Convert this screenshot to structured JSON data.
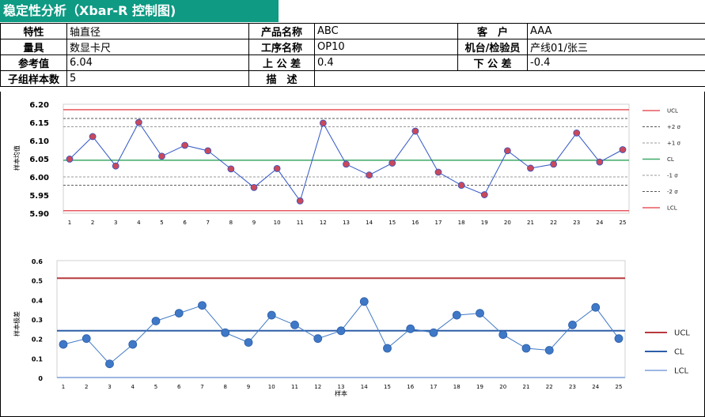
{
  "title": "稳定性分析（Xbar-R 控制图)",
  "info": {
    "row1": {
      "l1": "特性",
      "v1": "轴直径",
      "l2": "产品名称",
      "v2": "ABC",
      "l3": "客　户",
      "v3": "AAA"
    },
    "row2": {
      "l1": "量具",
      "v1": "数显卡尺",
      "l2": "工序名称",
      "v2": "OP10",
      "l3": "机台/检验员",
      "v3": "产线01/张三"
    },
    "row3": {
      "l1": "参考值",
      "v1": "6.04",
      "l2": "上 公 差",
      "v2": "0.4",
      "l3": "下 公 差",
      "v3": "-0.4"
    },
    "row4": {
      "l1": "子组样本数",
      "v1": "5",
      "l2": "描　述",
      "v2": ""
    }
  },
  "chart_data": [
    {
      "type": "line",
      "ylabel": "样本均值",
      "xlabel": "",
      "ylim": [
        5.9,
        6.2
      ],
      "yticks": [
        "5.90",
        "5.95",
        "6.00",
        "6.05",
        "6.10",
        "6.15",
        "6.20"
      ],
      "x": [
        1,
        2,
        3,
        4,
        5,
        6,
        7,
        8,
        9,
        10,
        11,
        12,
        13,
        14,
        15,
        16,
        17,
        18,
        19,
        20,
        21,
        22,
        23,
        24,
        25
      ],
      "values": [
        6.049,
        6.111,
        6.03,
        6.15,
        6.057,
        6.087,
        6.072,
        6.022,
        5.971,
        6.023,
        5.934,
        6.148,
        6.035,
        6.005,
        6.038,
        6.126,
        6.013,
        5.977,
        5.951,
        6.072,
        6.024,
        6.035,
        6.121,
        6.041,
        6.075
      ],
      "limits": [
        {
          "name": "UCL",
          "value": 6.185,
          "color": "#e8595f",
          "style": "solid"
        },
        {
          "name": "+2 σ",
          "value": 6.161,
          "color": "#555555",
          "style": "dash"
        },
        {
          "name": "+1 σ",
          "value": 6.138,
          "color": "#999999",
          "style": "dash"
        },
        {
          "name": "CL",
          "value": 6.046,
          "color": "#3daa66",
          "style": "solid"
        },
        {
          "name": "-1 σ",
          "value": 6.0,
          "color": "#999999",
          "style": "dash"
        },
        {
          "name": "-2 σ",
          "value": 5.977,
          "color": "#555555",
          "style": "dash"
        },
        {
          "name": "LCL",
          "value": 5.907,
          "color": "#e8595f",
          "style": "solid"
        }
      ],
      "line_color": "#2f55c4",
      "marker_color": "#c9485b"
    },
    {
      "type": "line",
      "ylabel": "样本极差",
      "xlabel": "样本",
      "ylim": [
        0,
        0.6
      ],
      "yticks": [
        "0",
        "0.1",
        "0.2",
        "0.3",
        "0.4",
        "0.5",
        "0.6"
      ],
      "x": [
        1,
        2,
        3,
        4,
        5,
        6,
        7,
        8,
        9,
        10,
        11,
        12,
        13,
        14,
        15,
        16,
        17,
        18,
        19,
        20,
        21,
        22,
        23,
        24,
        25
      ],
      "values": [
        0.17,
        0.2,
        0.07,
        0.17,
        0.29,
        0.33,
        0.37,
        0.23,
        0.18,
        0.32,
        0.27,
        0.2,
        0.24,
        0.39,
        0.15,
        0.25,
        0.23,
        0.32,
        0.33,
        0.22,
        0.15,
        0.14,
        0.27,
        0.36,
        0.2
      ],
      "limits": [
        {
          "name": "UCL",
          "value": 0.51,
          "color": "#b8393f",
          "style": "solid"
        },
        {
          "name": "CL",
          "value": 0.24,
          "color": "#2d5ea8",
          "style": "solid"
        },
        {
          "name": "LCL",
          "value": 0,
          "color": "#7d9fd9",
          "style": "solid"
        }
      ],
      "line_color": "#3f78c6",
      "marker_color": "#3f78c6"
    }
  ]
}
